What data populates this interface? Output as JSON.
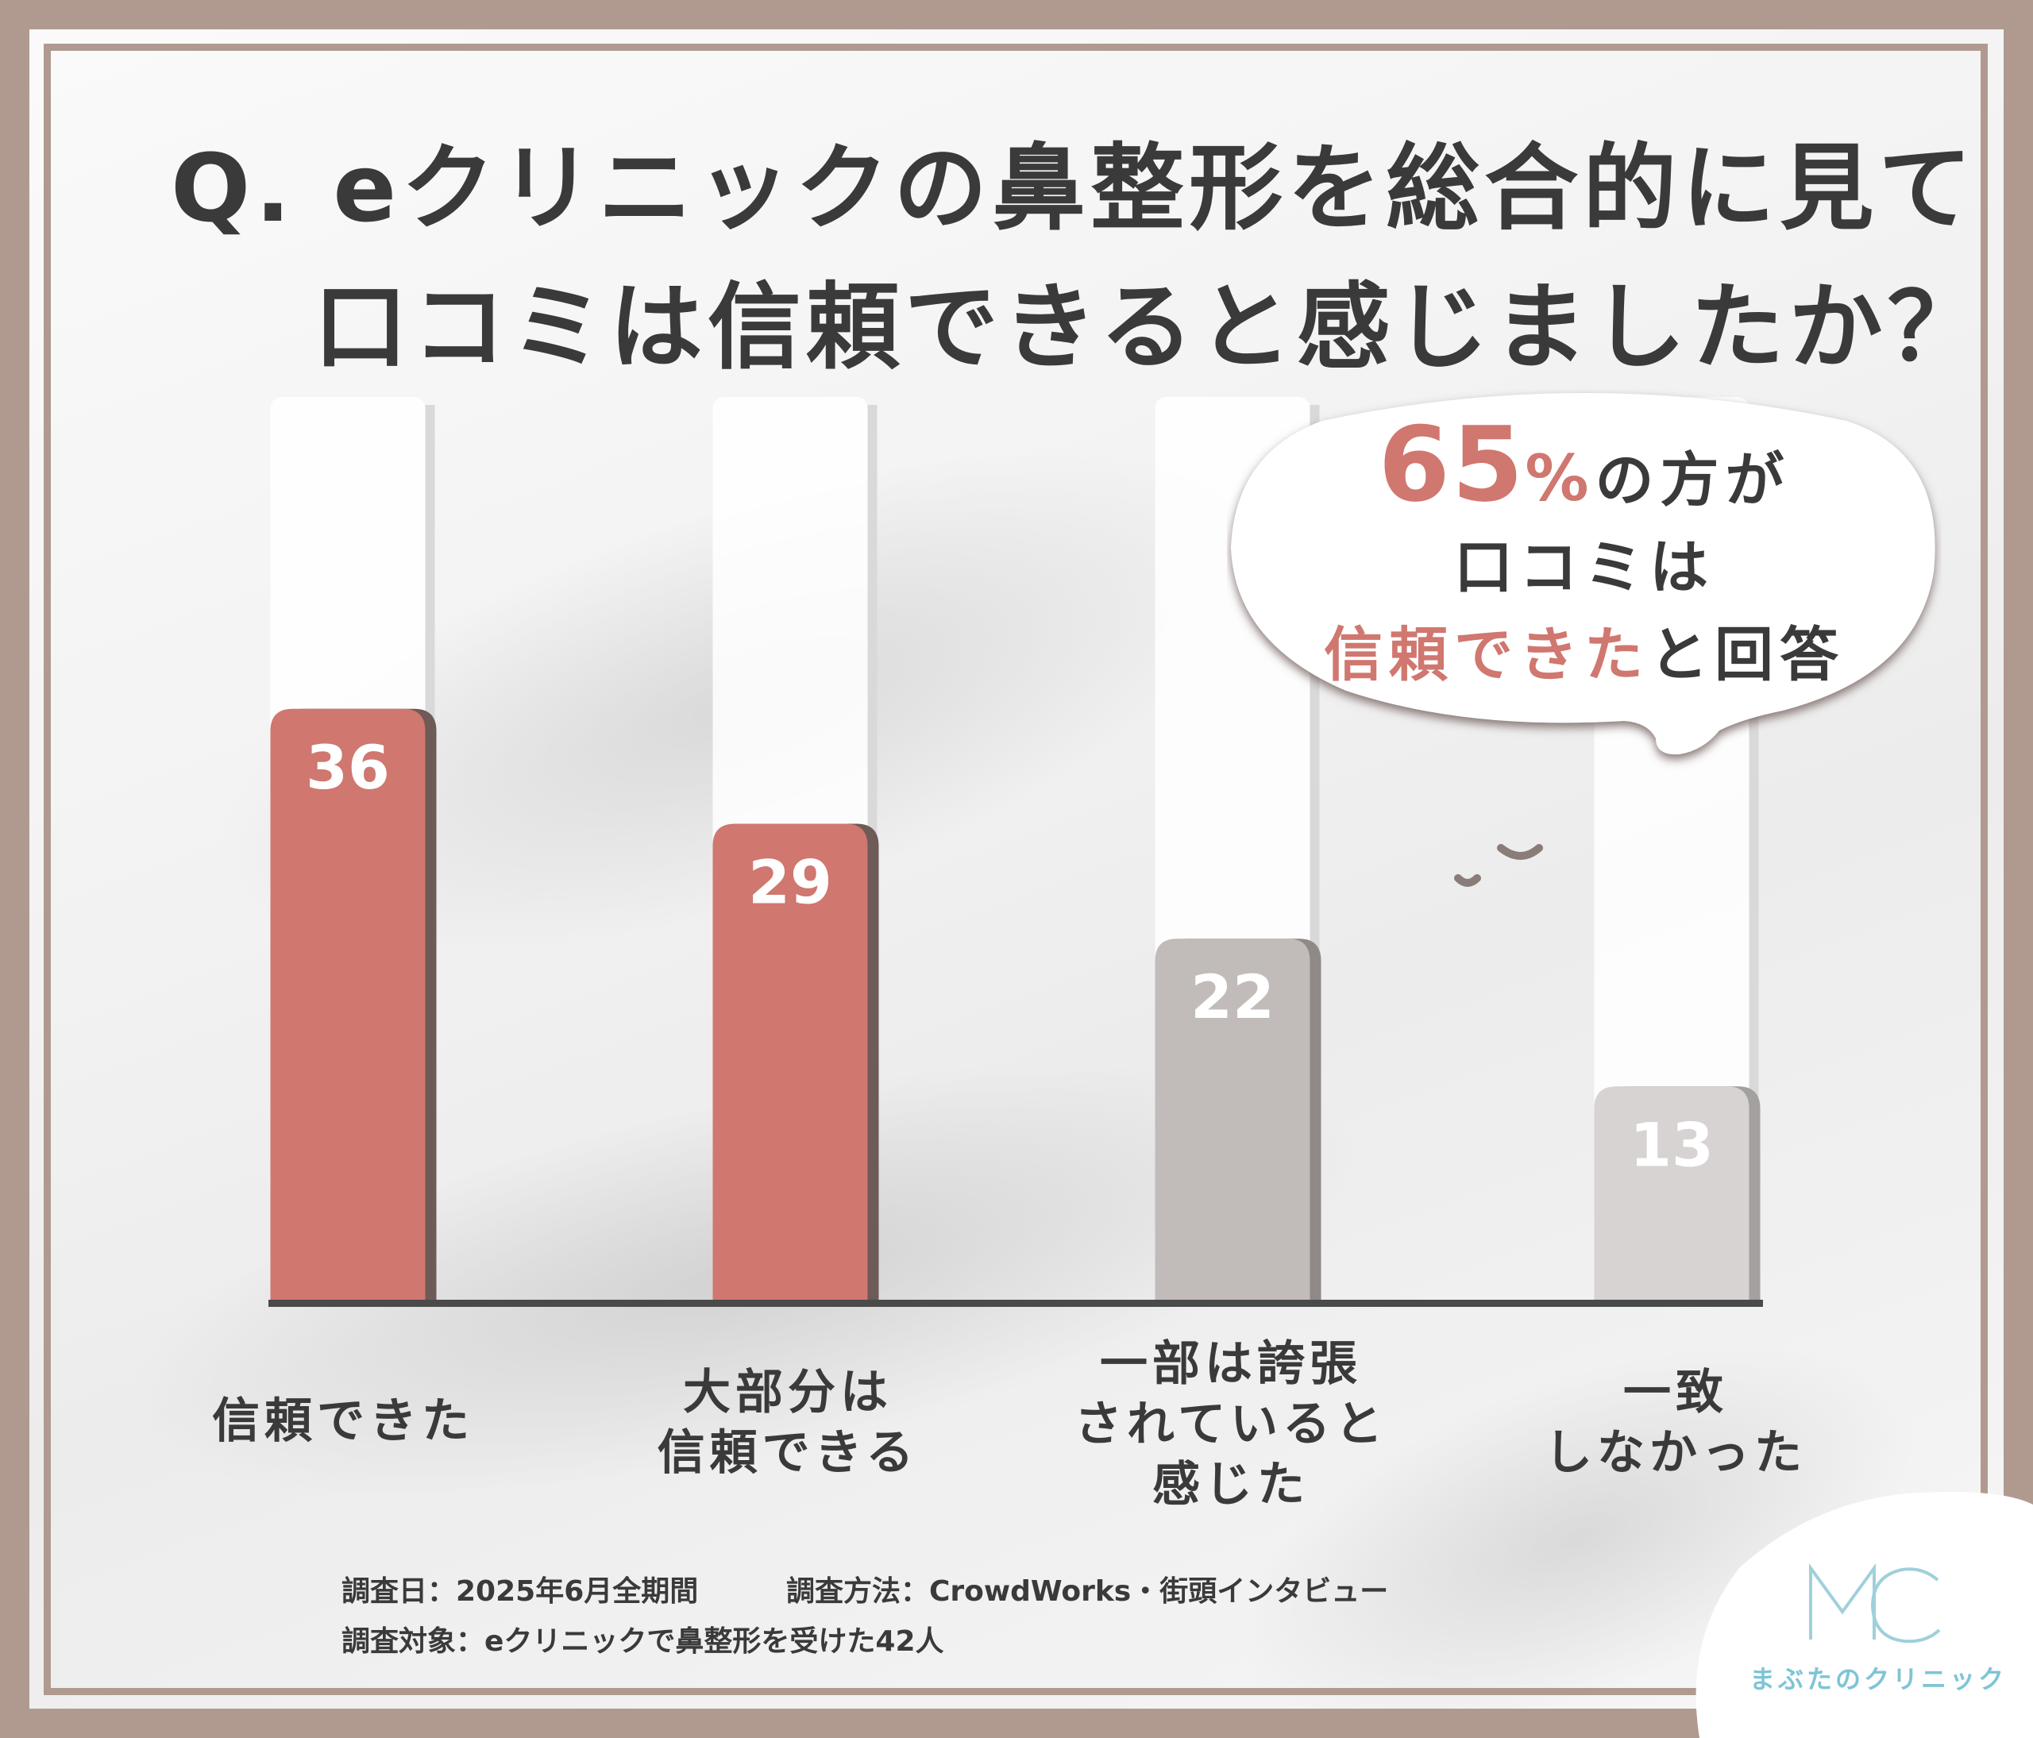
{
  "title": {
    "line1": "Q. eクリニックの鼻整形を総合的に見て",
    "line2": "口コミは信頼できると感じましたか？"
  },
  "chart_data": {
    "type": "bar",
    "categories": [
      "信頼できた",
      "大部分は\n信頼できる",
      "一部は誇張\nされていると\n感じた",
      "一致\nしなかった"
    ],
    "values": [
      36,
      29,
      22,
      13
    ],
    "bar_colors": [
      "#d0776f",
      "#d0776f",
      "#c1bcb9",
      "#d6d3d2"
    ],
    "title": "Q. eクリニックの鼻整形を総合的に見て口コミは信頼できると感じましたか？",
    "xlabel": "",
    "ylabel": "",
    "ylim": [
      0,
      55
    ],
    "grid": false,
    "legend": "none"
  },
  "callout": {
    "percent": "65",
    "percent_sign": "%",
    "line1_suffix": "の方が",
    "line2": "口コミは",
    "line3_accent": "信頼できた",
    "line3_suffix": "と回答"
  },
  "footnotes": {
    "survey_date": "調査日：2025年6月全期間",
    "survey_method": "調査方法：CrowdWorks・街頭インタビュー",
    "survey_target": "調査対象：eクリニックで鼻整形を受けた42人"
  },
  "brand": {
    "logo_text": "MC",
    "name": "まぶたのクリニック",
    "color": "#7fc4d6"
  },
  "colors": {
    "accent": "#d0776f",
    "frame": "#b09a90",
    "text": "#3a3a3a"
  }
}
